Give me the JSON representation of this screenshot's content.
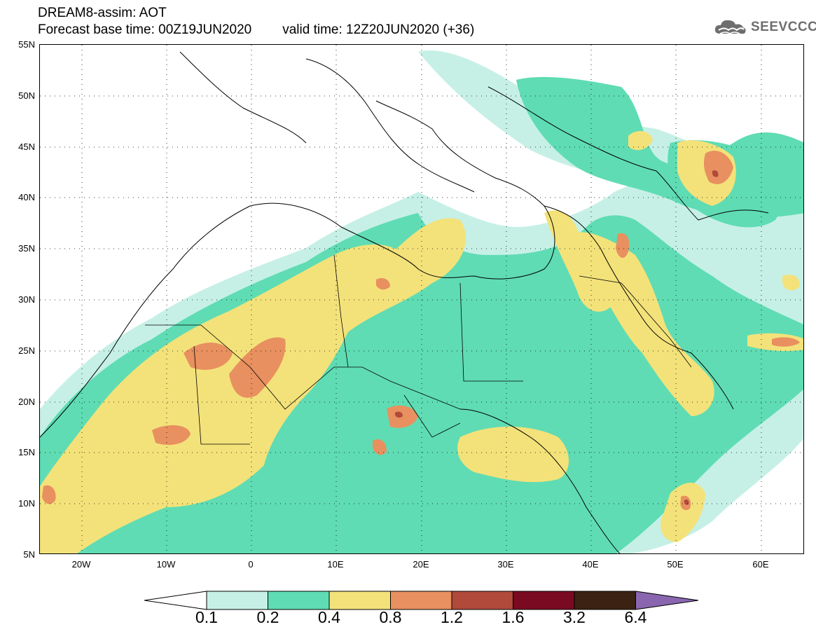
{
  "header": {
    "model_line": "DREAM8-assim: AOT",
    "base_time": "Forecast base time: 00Z19JUN2020",
    "valid_time": "valid time: 12Z20JUN2020 (+36)"
  },
  "logo": {
    "icon": "cloud-icon",
    "text": "SEEVCCC"
  },
  "map": {
    "lat_labels": [
      "55N",
      "50N",
      "45N",
      "40N",
      "35N",
      "30N",
      "25N",
      "20N",
      "15N",
      "10N",
      "5N"
    ],
    "lon_labels": [
      "20W",
      "10W",
      "0",
      "10E",
      "20E",
      "30E",
      "40E",
      "50E",
      "60E"
    ]
  },
  "legend": {
    "thresholds": [
      "0.1",
      "0.2",
      "0.4",
      "0.8",
      "1.2",
      "1.6",
      "3.2",
      "6.4"
    ],
    "colors": [
      "#ffffff",
      "#c6f0e6",
      "#5fdcb3",
      "#f3e27a",
      "#e8905f",
      "#b04a3a",
      "#7a0a22",
      "#3b2212",
      "#8a66b0"
    ]
  }
}
